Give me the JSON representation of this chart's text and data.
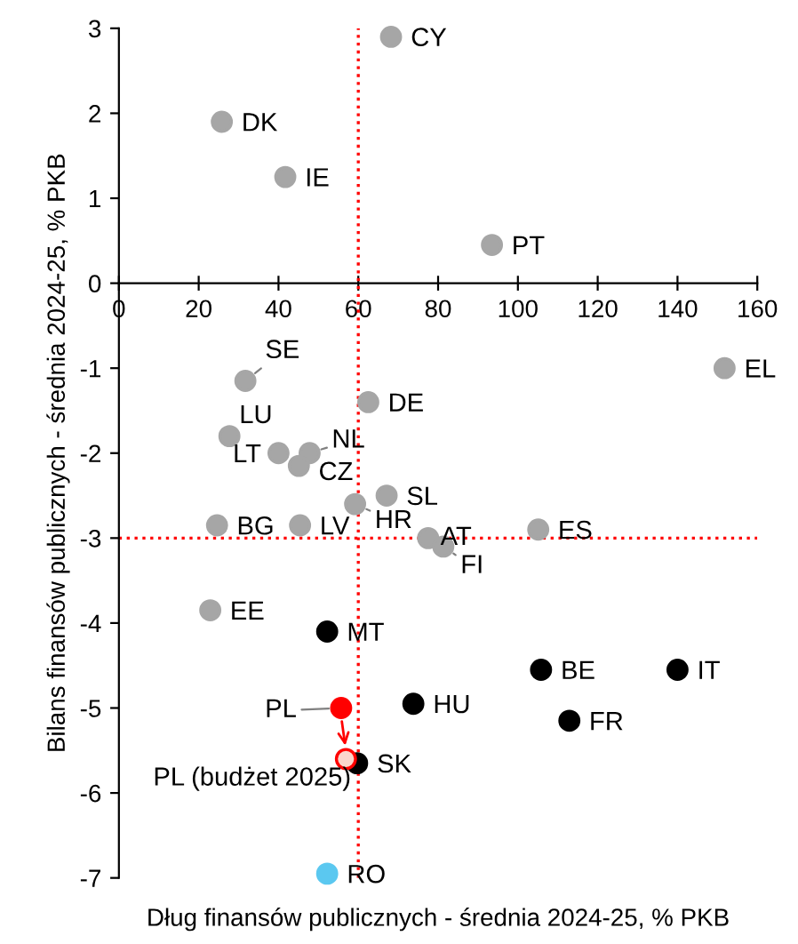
{
  "chart_data": {
    "type": "scatter",
    "xlabel": "Dług finansów publicznych - średnia 2024-25, % PKB",
    "ylabel": "Bilans finansów publicznych - średnia 2024-25, % PKB",
    "xlim": [
      0,
      160
    ],
    "xticks": [
      0,
      20,
      40,
      60,
      80,
      100,
      120,
      140,
      160
    ],
    "ylim": [
      -7,
      3
    ],
    "yticks": [
      -7,
      -6,
      -5,
      -4,
      -3,
      -2,
      -1,
      0,
      1,
      2,
      3
    ],
    "grid": false,
    "marker": "circle",
    "series": [
      {
        "color": "#a6a6a6",
        "x": [
          68.2,
          25.8,
          41.7,
          93.5,
          31.7,
          62.5,
          151.8,
          27.7,
          40.0,
          47.8,
          45.1,
          67.1,
          59.2,
          24.6,
          45.4,
          77.5,
          81.3,
          105.1,
          22.9
        ],
        "values": [
          2.9,
          1.9,
          1.25,
          0.45,
          -1.15,
          -1.4,
          -1.0,
          -1.8,
          -2.0,
          -2.0,
          -2.15,
          -2.5,
          -2.6,
          -2.85,
          -2.85,
          -3.0,
          -3.1,
          -2.9,
          -3.85
        ]
      },
      {
        "color": "#000000",
        "x": [
          52.2,
          105.8,
          140.0,
          73.8,
          112.9,
          59.7
        ],
        "values": [
          -4.1,
          -4.55,
          -4.55,
          -4.95,
          -5.15,
          -5.65
        ]
      },
      {
        "color": "#ff0000",
        "x": [
          55.7
        ],
        "values": [
          -5.0
        ]
      },
      {
        "color": "#fbd5cc",
        "x": [
          56.9
        ],
        "values": [
          -5.6
        ]
      },
      {
        "color": "#5bc8f0",
        "x": [
          52.2
        ],
        "values": [
          -6.95
        ]
      }
    ],
    "ref_lines": [
      {
        "axis": "y",
        "value": -3,
        "color": "#ff0000",
        "line_style": "dotted"
      },
      {
        "axis": "x",
        "value": 60,
        "color": "#ff0000",
        "line_style": "dotted"
      }
    ],
    "annotations": [
      {
        "text": "CY",
        "x": 68.2,
        "y": 2.9
      },
      {
        "text": "DK",
        "x": 25.8,
        "y": 1.9
      },
      {
        "text": "IE",
        "x": 41.7,
        "y": 1.25
      },
      {
        "text": "PT",
        "x": 93.5,
        "y": 0.45
      },
      {
        "text": "SE",
        "x": 31.7,
        "y": -1.15
      },
      {
        "text": "DE",
        "x": 62.5,
        "y": -1.4
      },
      {
        "text": "EL",
        "x": 151.8,
        "y": -1.0
      },
      {
        "text": "LU",
        "x": 27.7,
        "y": -1.8
      },
      {
        "text": "LT",
        "x": 40.0,
        "y": -2.0
      },
      {
        "text": "NL",
        "x": 47.8,
        "y": -2.0
      },
      {
        "text": "CZ",
        "x": 45.1,
        "y": -2.15
      },
      {
        "text": "SL",
        "x": 67.1,
        "y": -2.5
      },
      {
        "text": "HR",
        "x": 59.2,
        "y": -2.6
      },
      {
        "text": "BG",
        "x": 24.6,
        "y": -2.85
      },
      {
        "text": "LV",
        "x": 45.4,
        "y": -2.85
      },
      {
        "text": "AT",
        "x": 77.5,
        "y": -3.0
      },
      {
        "text": "FI",
        "x": 81.3,
        "y": -3.1
      },
      {
        "text": "ES",
        "x": 105.1,
        "y": -2.9
      },
      {
        "text": "EE",
        "x": 22.9,
        "y": -3.85
      },
      {
        "text": "MT",
        "x": 52.2,
        "y": -4.1
      },
      {
        "text": "BE",
        "x": 105.8,
        "y": -4.55
      },
      {
        "text": "IT",
        "x": 140.0,
        "y": -4.55
      },
      {
        "text": "HU",
        "x": 73.8,
        "y": -4.95
      },
      {
        "text": "FR",
        "x": 112.9,
        "y": -5.15
      },
      {
        "text": "SK",
        "x": 59.7,
        "y": -5.65
      },
      {
        "text": "PL",
        "x": 55.7,
        "y": -5.0
      },
      {
        "text": "PL (budżet 2025)",
        "x": 56.9,
        "y": -5.6
      },
      {
        "text": "RO",
        "x": 52.2,
        "y": -6.95
      }
    ]
  }
}
